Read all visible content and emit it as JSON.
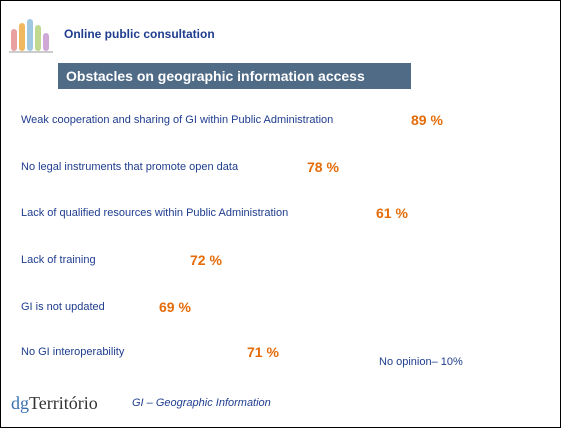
{
  "header": {
    "title": "Online public consultation"
  },
  "banner": {
    "title": "Obstacles on geographic information access"
  },
  "items": [
    {
      "label": "Weak cooperation and sharing of GI within Public Administration",
      "value": "89 %"
    },
    {
      "label": "No legal instruments that promote open data",
      "value": "78 %"
    },
    {
      "label": "Lack of qualified resources within Public Administration",
      "value": "61 %"
    },
    {
      "label": "Lack of training",
      "value": "72 %"
    },
    {
      "label": "GI is not updated",
      "value": "69 %"
    },
    {
      "label": "No GI interoperability",
      "value": "71 %"
    }
  ],
  "note": "No opinion– 10%",
  "footer": {
    "logo": "Território",
    "note": "GI – Geographic Information"
  }
}
